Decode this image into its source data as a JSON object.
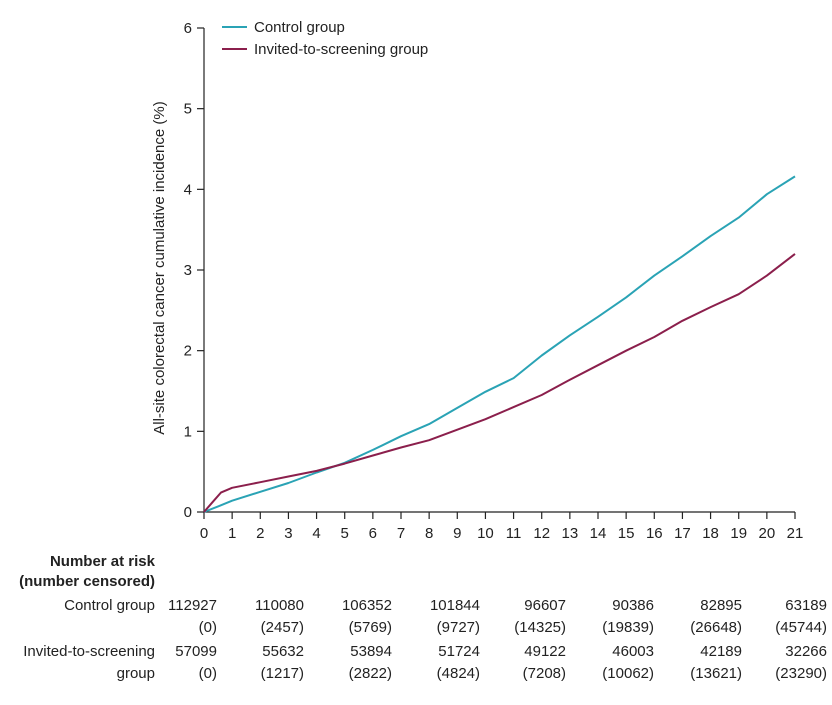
{
  "chart_data": {
    "type": "line",
    "ylabel": "All-site colorectal cancer cumulative incidence (%)",
    "xlabel": "",
    "xlim": [
      0,
      21
    ],
    "ylim": [
      0,
      6
    ],
    "x_ticks": [
      "0",
      "1",
      "2",
      "3",
      "4",
      "5",
      "6",
      "7",
      "8",
      "9",
      "10",
      "11",
      "12",
      "13",
      "14",
      "15",
      "16",
      "17",
      "18",
      "19",
      "20",
      "21"
    ],
    "y_ticks": [
      "0",
      "1",
      "2",
      "3",
      "4",
      "5",
      "6"
    ],
    "grid": false,
    "legend_position": "top-left",
    "series": [
      {
        "name": "Control group",
        "color": "#2aa3b5",
        "points": [
          [
            0,
            0
          ],
          [
            0.5,
            0.07
          ],
          [
            1,
            0.14
          ],
          [
            2,
            0.25
          ],
          [
            3,
            0.36
          ],
          [
            4,
            0.49
          ],
          [
            5,
            0.61
          ],
          [
            6,
            0.77
          ],
          [
            7,
            0.94
          ],
          [
            8,
            1.09
          ],
          [
            9,
            1.29
          ],
          [
            10,
            1.49
          ],
          [
            11,
            1.66
          ],
          [
            12,
            1.94
          ],
          [
            13,
            2.19
          ],
          [
            14,
            2.42
          ],
          [
            15,
            2.66
          ],
          [
            16,
            2.93
          ],
          [
            17,
            3.17
          ],
          [
            18,
            3.42
          ],
          [
            19,
            3.65
          ],
          [
            20,
            3.94
          ],
          [
            21,
            4.16
          ]
        ]
      },
      {
        "name": "Invited-to-screening group",
        "color": "#8b1f4c",
        "points": [
          [
            0,
            0
          ],
          [
            0.3,
            0.12
          ],
          [
            0.6,
            0.24
          ],
          [
            1,
            0.3
          ],
          [
            2,
            0.37
          ],
          [
            3,
            0.44
          ],
          [
            4,
            0.51
          ],
          [
            5,
            0.6
          ],
          [
            6,
            0.7
          ],
          [
            7,
            0.8
          ],
          [
            8,
            0.89
          ],
          [
            9,
            1.02
          ],
          [
            10,
            1.15
          ],
          [
            11,
            1.3
          ],
          [
            12,
            1.45
          ],
          [
            13,
            1.64
          ],
          [
            14,
            1.82
          ],
          [
            15,
            2.0
          ],
          [
            16,
            2.17
          ],
          [
            17,
            2.37
          ],
          [
            18,
            2.54
          ],
          [
            19,
            2.7
          ],
          [
            20,
            2.93
          ],
          [
            21,
            3.2
          ]
        ]
      }
    ]
  },
  "risk_table": {
    "title_line1": "Number at risk",
    "title_line2": "(number censored)",
    "rows": [
      {
        "label_lines": [
          "Control group"
        ],
        "at_risk": [
          "112927",
          "110080",
          "106352",
          "101844",
          "96607",
          "90386",
          "82895",
          "63189"
        ],
        "censored": [
          "(0)",
          "(2457)",
          "(5769)",
          "(9727)",
          "(14325)",
          "(19839)",
          "(26648)",
          "(45744)"
        ]
      },
      {
        "label_lines": [
          "Invited-to-screening",
          "group"
        ],
        "at_risk": [
          "57099",
          "55632",
          "53894",
          "51724",
          "49122",
          "46003",
          "42189",
          "32266"
        ],
        "censored": [
          "(0)",
          "(1217)",
          "(2822)",
          "(4824)",
          "(7208)",
          "(10062)",
          "(13621)",
          "(23290)"
        ]
      }
    ],
    "time_points": [
      0,
      3,
      6,
      9,
      12,
      15,
      18,
      21
    ]
  }
}
